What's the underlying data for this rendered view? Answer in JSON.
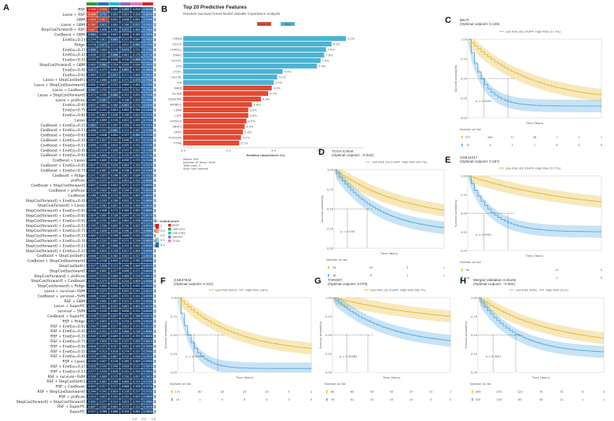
{
  "panels": {
    "A": {
      "letter": "A",
      "columns_colors": [
        "#2ca02c",
        "#1f77b4",
        "#17becf",
        "#9467bd",
        "#e377c2",
        "#d62728"
      ],
      "models": [
        "RSF",
        "Lasso + RSF",
        "GBM",
        "Lasso + GBM",
        "StepCox[forward] + RSF",
        "CoxBoost + GBM",
        "Enet[α=0.1]",
        "Ridge",
        "Enet[α=0.2]",
        "Enet[α=0.3]",
        "Enet[α=0.5]",
        "StepCox[forward] + GBM",
        "Enet[α=0.4]",
        "Enet[α=0.6]",
        "Lasso + StepCox[both]",
        "Lasso + StepCox[backward]",
        "Lasso + CoxBoost",
        "Lasso + StepCox[forward]",
        "Lasso + plsRcox",
        "Enet[α=0.9]",
        "Enet[α=0.7]",
        "Enet[α=0.8]",
        "Lasso",
        "CoxBoost + Enet[α=0.2]",
        "CoxBoost + Enet[α=0.1]",
        "CoxBoost + Enet[α=0.6]",
        "CoxBoost + Enet[α=0.3]",
        "CoxBoost + Enet[α=0.1]",
        "CoxBoost + Enet[α=0.4]",
        "CoxBoost + Enet[α=0.9]",
        "CoxBoost + Lasso",
        "CoxBoost + Enet[α=0.8]",
        "CoxBoost + Enet[α=0.7]",
        "CoxBoost + Ridge",
        "plsRcox",
        "CoxBoost + StepCox[forward]",
        "CoxBoost + plsRcox",
        "CoxBoost",
        "StepCox[forward] + Enet[α=0.4]",
        "StepCox[forward] + Lasso",
        "StepCox[forward] + Enet[α=0.6]",
        "StepCox[forward] + Enet[α=0.8]",
        "StepCox[forward] + Enet[α=0.9]",
        "StepCox[forward] + Enet[α=0.5]",
        "StepCox[forward] + Enet[α=0.7]",
        "StepCox[forward] + Enet[α=0.2]",
        "StepCox[forward] + Enet[α=0.3]",
        "StepCox[forward] + Enet[α=0.1]",
        "StepCox[forward] + Enet[α=0.2]",
        "CoxBoost + StepCox[both]",
        "CoxBoost + StepCox[backward]",
        "StepCox[both]",
        "StepCox[backward]",
        "StepCox[forward] + plsRcox",
        "StepCox[forward] + CoxBoost",
        "StepCox[forward] + Ridge",
        "Lasso + survival−SVM",
        "CoxBoost + survival−SVM",
        "RSF + GBM",
        "Lasso + SuperPC",
        "survival − SVM",
        "CoxBoost + SuperPC",
        "RSF + Ridge",
        "RSF + Enet[α=0.6]",
        "RSF + Enet[α=0.4]",
        "RSF + Enet[α=0.2]",
        "RSF + Enet[α=0.7]",
        "RSF + Enet[α=0.9]",
        "RSF + Enet[α=0.5]",
        "RSF + Enet[α=0.8]",
        "RSF + Lasso",
        "RSF + Enet[α=0.2]",
        "RSF + Enet[α=0.1]",
        "RSF + survival−SVM",
        "RSF + StepCox[both]",
        "RSF + CoxBoost",
        "RSF + StepCox[backward]",
        "RSF + plsRcox",
        "StepCox[forward] + StepCox[forward]",
        "RSF + SuperPC",
        "SuperPC"
      ],
      "first_rows": [
        [
          "1.000",
          "0.930",
          "0.660",
          "0.663",
          "0.616",
          "0.8220"
        ],
        [
          "0.860",
          "0.741",
          "0.653",
          "0.653",
          "0.616",
          "0.8000"
        ],
        [
          "0.800",
          "0.811",
          "0.652",
          "0.656",
          "0.651",
          "0.7946"
        ]
      ],
      "legend": {
        "title": "C−index",
        "ticks": [
          "1",
          "0.8",
          "0.6",
          "0.4",
          "0.2"
        ],
        "cohorts_title": "Cohort",
        "cohorts": [
          {
            "name": "BEAT",
            "color": "#d62728"
          },
          {
            "name": "GSE12417",
            "color": "#2ca02c"
          },
          {
            "name": "GSE37642",
            "color": "#17becf"
          },
          {
            "name": "TARGET",
            "color": "#9467bd"
          },
          {
            "name": "TCGA",
            "color": "#e377c2"
          }
        ]
      },
      "axis": [
        "0.0",
        "0.5",
        "1.0"
      ]
    },
    "B": {
      "letter": "B",
      "title": "Top 20 Predictive Features",
      "subtitle": "Random Survival Forest Model Variable Importance Analysis",
      "legend": [
        {
          "name": "Medium",
          "color": "#e34a33"
        },
        {
          "name": "High",
          "color": "#4eb3d3"
        }
      ],
      "xlabel": "Relative Importance (%)",
      "xticks": [
        "0.0",
        "2.5",
        "5.0",
        "7.5"
      ],
      "note": [
        "Model: RSF",
        "Number of Trees: 1000",
        "Total vars: 0",
        "Split rule: logrank"
      ]
    },
    "C": {
      "letter": "C",
      "title": "BEAT",
      "cutpoint": "(Optimal cutpoint: 0.126)",
      "legend": [
        "Low Risk (82.3%)",
        "High Risk (17.7%)"
      ],
      "pval": "p < 0.0001",
      "xlabel": "Time (Years)",
      "risk_title": "Number at risk",
      "risk_low": [
        "377",
        "180",
        "77",
        "28",
        "7",
        "1",
        "1"
      ],
      "risk_high": [
        "72",
        "4",
        "2",
        "1",
        "0",
        "0",
        "0"
      ]
    },
    "D": {
      "letter": "D",
      "title": "TCGA Cohort",
      "cutpoint": "(Optimal cutpoint: −0.023)",
      "legend": [
        "Low Risk (59.2%)",
        "High Risk (40.7%)"
      ],
      "pval": "p = 0.034",
      "xlabel": "Time (Years)",
      "risk_title": "Number at risk",
      "risk_low": [
        "93",
        "19",
        "3",
        "1"
      ],
      "risk_high": [
        "36",
        "8",
        "1",
        "1"
      ]
    },
    "E": {
      "letter": "E",
      "title": "GSE12417",
      "cutpoint": "(Optimal cutpoint: 0.157)",
      "legend": [
        "Low Risk (82.3%)",
        "High Risk (17.7%)"
      ],
      "pval": "p < 0.0001",
      "xlabel": "Time (Years)",
      "risk_title": "Number at risk",
      "risk_low": [
        "60",
        "",
        "25",
        "0"
      ],
      "risk_high": [
        "34",
        "",
        "1",
        "0"
      ]
    },
    "F": {
      "letter": "F",
      "title": "GSE37642",
      "cutpoint": "(Optimal cutpoint: 0.121)",
      "legend": [
        "Low Risk (82%)",
        "High Risk (18%)"
      ],
      "pval": "p = 0.00070",
      "xlabel": "Time (Years)",
      "risk_title": "Number at risk",
      "risk_low": [
        "171",
        "60",
        "30",
        "25",
        "15",
        "5",
        "2"
      ],
      "risk_high": [
        "15",
        "1",
        "0",
        "0",
        "0",
        "0",
        "0"
      ]
    },
    "G": {
      "letter": "G",
      "title": "TARGET",
      "cutpoint": "(Optimal cutpoint: 0.079)",
      "legend": [
        "Low Risk (31.3%)",
        "High Risk (68.7%)"
      ],
      "pval": "p = 0.00084",
      "xlabel": "Time (Years)",
      "risk_title": "Number at risk",
      "risk_low": [
        "80",
        "60",
        "55",
        "50",
        "37",
        "15",
        "1"
      ],
      "risk_high": [
        "76",
        "41",
        "25",
        "15",
        "10",
        "5",
        "0"
      ]
    },
    "H": {
      "letter": "H",
      "title": "Merged Validation Cohorts",
      "cutpoint": "(Optimal cutpoint: −0.002)",
      "legend": [
        "Low Risk (49%)",
        "High Risk (51%)"
      ],
      "pval": "p < 0.0001",
      "xlabel": "Time (Years)",
      "risk_title": "Number at risk",
      "risk_low": [
        "493",
        "235",
        "120",
        "75",
        "31",
        "8",
        "0"
      ],
      "risk_high": [
        "520",
        "134",
        "65",
        "35",
        "11",
        "1",
        "1"
      ]
    }
  },
  "chart_data": [
    {
      "type": "bar",
      "title": "Top 20 Predictive Features",
      "subtitle": "Random Survival Forest Model Variable Importance Analysis",
      "xlabel": "Relative Importance (%)",
      "xlim": [
        0,
        10
      ],
      "categories": [
        "CPNE8",
        "CD109",
        "CHRDL1",
        "STAB1",
        "DOCK1",
        "SCD",
        "CTSF1",
        "CALCRL",
        "LTK",
        "RAB9",
        "ZG16B",
        "KSDSTB0",
        "SPINBT2",
        "CD86",
        "LSP1",
        "HOXA10",
        "ZNAT3",
        "GPX5",
        "PLA2G4A",
        "PTMS"
      ],
      "values": [
        9.0,
        8.2,
        7.9,
        7.8,
        7.6,
        7.4,
        5.5,
        5.2,
        5.0,
        4.9,
        4.7,
        4.3,
        3.8,
        3.6,
        3.6,
        3.5,
        3.4,
        3.3,
        3.2,
        3.1
      ],
      "labels": [
        "9.0%",
        "8.2%",
        "7.9%",
        "7.8%",
        "7.6%",
        "7.4%",
        "5.5%",
        "5.2%",
        "5.0%",
        "4.9%",
        "4.7%",
        "4.3%",
        "3.8%",
        "3.6%",
        "3.6%",
        "3.5%",
        "3.4%",
        "3.3%",
        "3.2%",
        "3.1%"
      ],
      "groups": [
        "High",
        "High",
        "High",
        "High",
        "High",
        "High",
        "High",
        "High",
        "High",
        "Medium",
        "Medium",
        "Medium",
        "Medium",
        "Medium",
        "Medium",
        "Medium",
        "Medium",
        "Medium",
        "Medium",
        "Medium"
      ]
    }
  ]
}
